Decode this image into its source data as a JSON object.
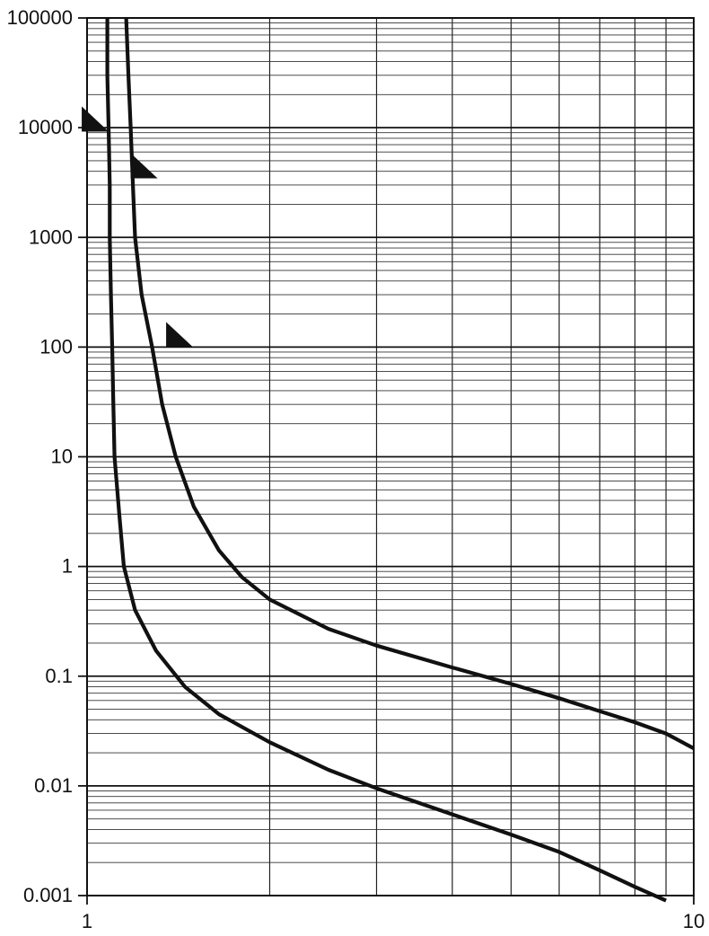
{
  "chart_data": {
    "type": "line",
    "title": "",
    "xlabel": "",
    "ylabel": "",
    "x_scale": "log",
    "y_scale": "log",
    "xlim": [
      1,
      10
    ],
    "ylim": [
      0.001,
      100000
    ],
    "grid": true,
    "x_tick_labels": [
      {
        "value": 1,
        "label": "1"
      },
      {
        "value": 10,
        "label": "10"
      }
    ],
    "y_tick_labels": [
      {
        "value": 100000,
        "label": "100000"
      },
      {
        "value": 10000,
        "label": "10000"
      },
      {
        "value": 1000,
        "label": "1000"
      },
      {
        "value": 100,
        "label": "100"
      },
      {
        "value": 10,
        "label": "10"
      },
      {
        "value": 1,
        "label": "1"
      },
      {
        "value": 0.1,
        "label": "0.1"
      },
      {
        "value": 0.01,
        "label": "0.01"
      },
      {
        "value": 0.001,
        "label": "0.001"
      }
    ],
    "series": [
      {
        "color": "#111111",
        "points": [
          [
            1.08,
            100000
          ],
          [
            1.08,
            30000
          ],
          [
            1.085,
            10000
          ],
          [
            1.09,
            3000
          ],
          [
            1.09,
            1000
          ],
          [
            1.095,
            300
          ],
          [
            1.1,
            100
          ],
          [
            1.105,
            30
          ],
          [
            1.11,
            10
          ],
          [
            1.13,
            3
          ],
          [
            1.15,
            1
          ],
          [
            1.2,
            0.4
          ],
          [
            1.3,
            0.17
          ],
          [
            1.45,
            0.08
          ],
          [
            1.65,
            0.045
          ],
          [
            2.0,
            0.025
          ],
          [
            2.5,
            0.014
          ],
          [
            3.0,
            0.0095
          ],
          [
            4.0,
            0.0055
          ],
          [
            5.0,
            0.0036
          ],
          [
            6.0,
            0.0025
          ],
          [
            7.0,
            0.0017
          ],
          [
            8.0,
            0.0012
          ],
          [
            9.0,
            0.0009
          ]
        ]
      },
      {
        "color": "#111111",
        "points": [
          [
            1.16,
            100000
          ],
          [
            1.17,
            30000
          ],
          [
            1.18,
            10000
          ],
          [
            1.19,
            3000
          ],
          [
            1.2,
            1000
          ],
          [
            1.23,
            300
          ],
          [
            1.28,
            100
          ],
          [
            1.33,
            30
          ],
          [
            1.4,
            10
          ],
          [
            1.5,
            3.5
          ],
          [
            1.65,
            1.4
          ],
          [
            1.8,
            0.8
          ],
          [
            2.0,
            0.5
          ],
          [
            2.5,
            0.27
          ],
          [
            3.0,
            0.19
          ],
          [
            4.0,
            0.12
          ],
          [
            5.0,
            0.085
          ],
          [
            6.0,
            0.063
          ],
          [
            7.0,
            0.048
          ],
          [
            8.0,
            0.038
          ],
          [
            9.0,
            0.03
          ],
          [
            10.0,
            0.022
          ]
        ]
      }
    ],
    "markers": [
      {
        "shape": "triangle",
        "x": 0.98,
        "y": 12000,
        "color": "#111111"
      },
      {
        "shape": "triangle",
        "x": 1.18,
        "y": 4500,
        "color": "#111111"
      },
      {
        "shape": "triangle",
        "x": 1.35,
        "y": 130,
        "color": "#111111"
      }
    ]
  }
}
